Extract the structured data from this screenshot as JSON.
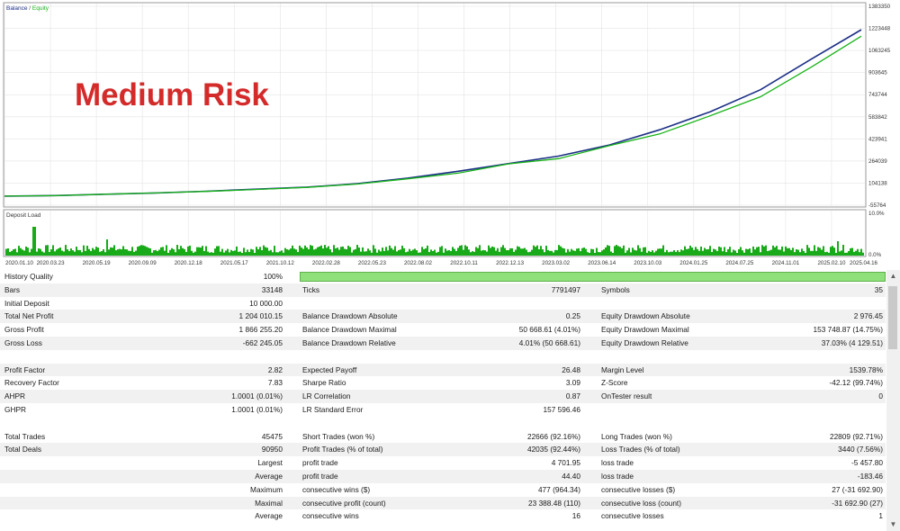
{
  "chart": {
    "legend_balance": "Balance",
    "legend_sep": " / ",
    "legend_equity": "Equity",
    "overlay_title": "Medium Risk",
    "y_ticks": [
      "1383350",
      "1223448",
      "1063245",
      "903645",
      "743744",
      "583842",
      "423941",
      "264039",
      "104138",
      "-55764"
    ],
    "deposit_label": "Deposit Load",
    "deposit_ticks": [
      "10.0%",
      "0.0%"
    ],
    "x_dates": [
      "2020.01.10",
      "2020.03.23",
      "2020.05.19",
      "2020.09.09",
      "2020.12.18",
      "2021.05.17",
      "2021.10.12",
      "2022.02.28",
      "2022.05.23",
      "2022.08.02",
      "2022.10.11",
      "2022.12.13",
      "2023.03.02",
      "2023.06.14",
      "2023.10.03",
      "2024.01.25",
      "2024.07.25",
      "2024.11.01",
      "2025.02.10",
      "2025.04.16"
    ],
    "colors": {
      "balance": "#1c2f86",
      "equity": "#17b317",
      "deposit": "#18aa18",
      "title": "#d42a2a",
      "grid": "#e3e3e3"
    }
  },
  "chart_data": {
    "type": "line",
    "title": "Medium Risk",
    "xlabel": "",
    "ylabel": "",
    "ylim": [
      -55764,
      1383350
    ],
    "x": [
      "2020.01.10",
      "2020.05.19",
      "2020.12.18",
      "2021.05.17",
      "2021.10.12",
      "2022.02.28",
      "2022.05.23",
      "2022.08.02",
      "2022.10.11",
      "2022.12.13",
      "2023.03.02",
      "2023.06.14",
      "2023.10.03",
      "2024.01.25",
      "2024.07.25",
      "2024.11.01",
      "2025.02.10",
      "2025.04.16"
    ],
    "series": [
      {
        "name": "Balance",
        "values": [
          10000,
          14000,
          24000,
          33000,
          45000,
          60000,
          75000,
          100000,
          140000,
          190000,
          245000,
          300000,
          380000,
          490000,
          620000,
          780000,
          1000000,
          1214010
        ]
      },
      {
        "name": "Equity",
        "values": [
          10000,
          13500,
          23500,
          32500,
          44000,
          58000,
          73000,
          97000,
          135000,
          183000,
          235000,
          290000,
          365000,
          470000,
          580000,
          740000,
          930000,
          1180000
        ]
      }
    ]
  },
  "report": {
    "history_quality": {
      "label": "History Quality",
      "value": "100%"
    },
    "rows": [
      {
        "y": 14.8,
        "alt": true,
        "l1": "Bars",
        "v1": "33148",
        "l2": "Ticks",
        "v2": "7791497",
        "l3": "Symbols",
        "v3": "35"
      },
      {
        "y": 29.6,
        "alt": false,
        "l1": "Initial Deposit",
        "v1": "10 000.00",
        "l2": "",
        "v2": "",
        "l3": "",
        "v3": ""
      },
      {
        "y": 44.4,
        "alt": true,
        "l1": "Total Net Profit",
        "v1": "1 204 010.15",
        "l2": "Balance Drawdown Absolute",
        "v2": "0.25",
        "l3": "Equity Drawdown Absolute",
        "v3": "2 976.45"
      },
      {
        "y": 59.2,
        "alt": false,
        "l1": "Gross Profit",
        "v1": "1 866 255.20",
        "l2": "Balance Drawdown Maximal",
        "v2": "50 668.61 (4.01%)",
        "l3": "Equity Drawdown Maximal",
        "v3": "153 748.87 (14.75%)"
      },
      {
        "y": 74.0,
        "alt": true,
        "l1": "Gross Loss",
        "v1": "-662 245.05",
        "l2": "Balance Drawdown Relative",
        "v2": "4.01% (50 668.61)",
        "l3": "Equity Drawdown Relative",
        "v3": "37.03% (4 129.51)"
      },
      {
        "y": 103.6,
        "alt": true,
        "l1": "Profit Factor",
        "v1": "2.82",
        "l2": "Expected Payoff",
        "v2": "26.48",
        "l3": "Margin Level",
        "v3": "1539.78%"
      },
      {
        "y": 118.4,
        "alt": false,
        "l1": "Recovery Factor",
        "v1": "7.83",
        "l2": "Sharpe Ratio",
        "v2": "3.09",
        "l3": "Z-Score",
        "v3": "-42.12 (99.74%)"
      },
      {
        "y": 133.2,
        "alt": true,
        "l1": "AHPR",
        "v1": "1.0001 (0.01%)",
        "l2": "LR Correlation",
        "v2": "0.87",
        "l3": "OnTester result",
        "v3": "0"
      },
      {
        "y": 148.0,
        "alt": false,
        "l1": "GHPR",
        "v1": "1.0001 (0.01%)",
        "l2": "LR Standard Error",
        "v2": "157 596.46",
        "l3": "",
        "v3": ""
      },
      {
        "y": 177.6,
        "alt": false,
        "l1": "Total Trades",
        "v1": "45475",
        "l2": "Short Trades (won %)",
        "v2": "22666 (92.16%)",
        "l3": "Long Trades (won %)",
        "v3": "22809 (92.71%)"
      },
      {
        "y": 192.4,
        "alt": true,
        "l1": "Total Deals",
        "v1": "90950",
        "l2": "Profit Trades (% of total)",
        "v2": "42035 (92.44%)",
        "l3": "Loss Trades (% of total)",
        "v3": "3440 (7.56%)"
      },
      {
        "y": 207.2,
        "alt": false,
        "l1": "",
        "s1": "Largest",
        "v1": "",
        "l2": "profit trade",
        "v2": "4 701.95",
        "l3": "loss trade",
        "v3": "-5 457.80"
      },
      {
        "y": 222.0,
        "alt": true,
        "l1": "",
        "s1": "Average",
        "v1": "",
        "l2": "profit trade",
        "v2": "44.40",
        "l3": "loss trade",
        "v3": "-183.46"
      },
      {
        "y": 236.8,
        "alt": false,
        "l1": "",
        "s1": "Maximum",
        "v1": "",
        "l2": "consecutive wins ($)",
        "v2": "477 (964.34)",
        "l3": "consecutive losses ($)",
        "v3": "27 (-31 692.90)"
      },
      {
        "y": 251.6,
        "alt": true,
        "l1": "",
        "s1": "Maximal",
        "v1": "",
        "l2": "consecutive profit (count)",
        "v2": "23 388.48 (110)",
        "l3": "consecutive loss (count)",
        "v3": "-31 692.90 (27)"
      },
      {
        "y": 266.4,
        "alt": false,
        "l1": "",
        "s1": "Average",
        "v1": "",
        "l2": "consecutive wins",
        "v2": "16",
        "l3": "consecutive losses",
        "v3": "1"
      }
    ]
  }
}
